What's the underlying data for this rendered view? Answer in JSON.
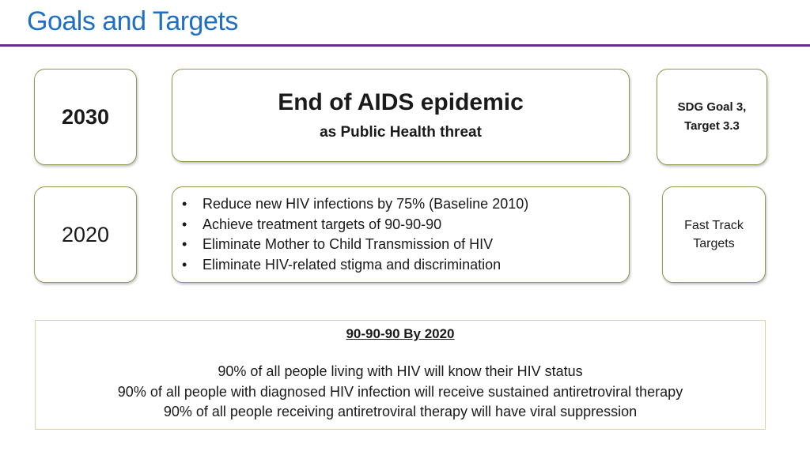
{
  "header": {
    "title": "Goals and Targets",
    "accent_color": "#1f6fc4",
    "rule_color": "#6a2c8f"
  },
  "goal_2030": {
    "year": "2030",
    "title": "End of AIDS epidemic",
    "subtitle": "as Public Health threat",
    "sdg_line1": "SDG Goal 3,",
    "sdg_line2": "Target 3.3"
  },
  "goal_2020": {
    "year": "2020",
    "targets": [
      "Reduce new HIV infections by 75% (Baseline 2010)",
      "Achieve treatment targets of 90-90-90",
      "Eliminate Mother to Child Transmission of HIV",
      "Eliminate HIV-related stigma and discrimination"
    ],
    "fast_track_line1": "Fast Track",
    "fast_track_line2": "Targets"
  },
  "ninety": {
    "title": "90-90-90 By 2020",
    "lines": [
      "90% of all people living with HIV will know their HIV status",
      "90% of all people with diagnosed HIV infection will receive sustained antiretroviral therapy",
      "90% of all people receiving antiretroviral therapy will have viral suppression"
    ]
  }
}
